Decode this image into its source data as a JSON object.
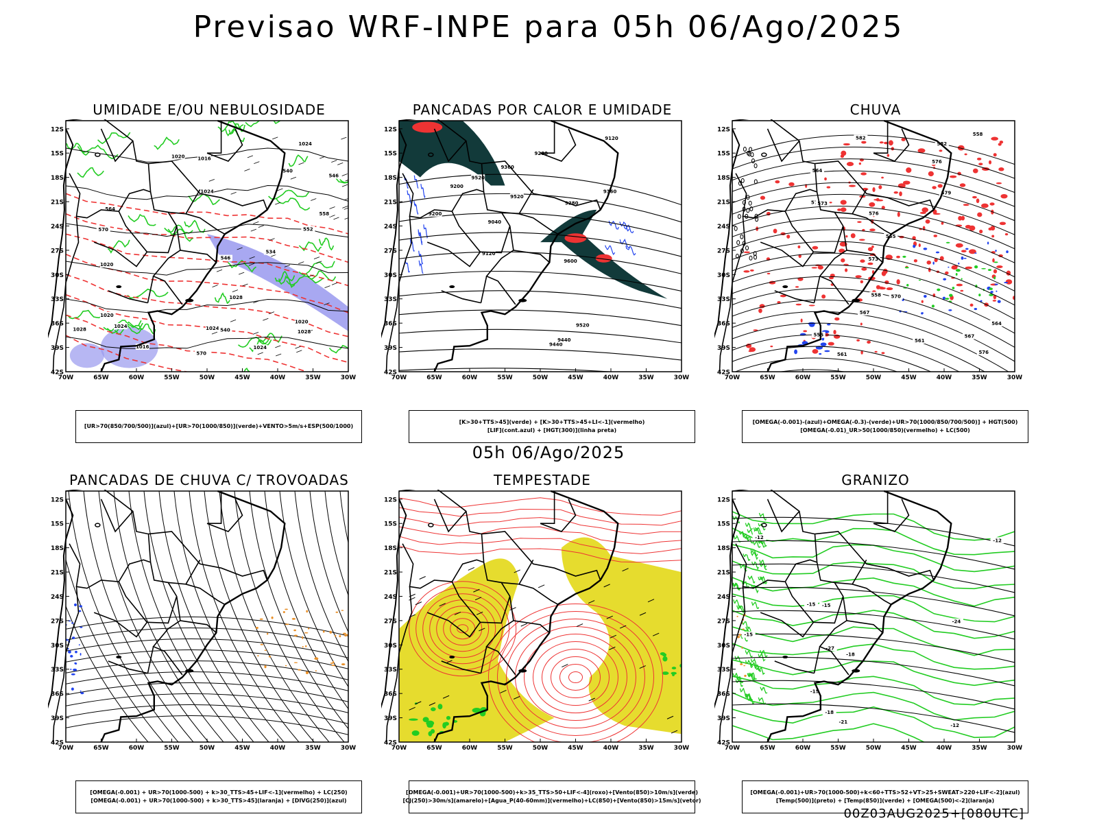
{
  "header": {
    "title": "Previsao WRF-INPE  para 05h 06/Ago/2025"
  },
  "mid_title": "05h 06/Ago/2025",
  "footer": "00Z03AUG2025+[080UTC]",
  "axes": {
    "lat_labels": [
      "12S",
      "15S",
      "18S",
      "21S",
      "24S",
      "27S",
      "30S",
      "33S",
      "36S",
      "39S",
      "42S"
    ],
    "lon_labels": [
      "70W",
      "65W",
      "60W",
      "55W",
      "50W",
      "45W",
      "40W",
      "35W",
      "30W"
    ]
  },
  "colors": {
    "green": "#22cc22",
    "red": "#ee3333",
    "blue": "#2244ee",
    "lavender": "#9999ee",
    "darkteal": "#123a3a",
    "yellow": "#e6dc2e",
    "orange": "#e8902a",
    "black": "#000000"
  },
  "panels": [
    {
      "title": "UMIDADE E/OU NEBULOSIDADE",
      "legend": [
        "[UR>70(850/700/500)](azul)+[UR>70(1000/850)](verde)+VENTO>5m/s+ESP(500/1000)"
      ],
      "contour_labels": [
        "1016",
        "1020",
        "1020",
        "1016",
        "1020",
        "1020",
        "1024",
        "1024",
        "1028",
        "1028",
        "1024",
        "1024",
        "1024",
        "1028",
        "570",
        "570",
        "564",
        "558",
        "552",
        "546",
        "540",
        "534",
        "540",
        "546"
      ]
    },
    {
      "title": "PANCADAS POR CALOR E UMIDADE",
      "legend": [
        "[K>30+TTS>45](verde) + [K>30+TTS>45+LI<-1](vermelho)",
        "[LIF](cont.azul) + [HGT(300)](linha preta)"
      ],
      "contour_labels": [
        "9600",
        "9520",
        "9520",
        "9520",
        "9440",
        "9440",
        "9360",
        "9360",
        "9280",
        "9280",
        "9200",
        "9200",
        "9120",
        "9120",
        "9040"
      ]
    },
    {
      "title": "CHUVA",
      "legend": [
        "[OMEGA(-0.001)-(azul)+OMEGA(-0.3)-(verde)+UR>70(1000/850/700/500)] + HGT(500)",
        "[OMEGA(-0.01)_UR>50(1000/850)(vermelho) + LC(500)"
      ],
      "contour_labels": [
        "582",
        "582",
        "579",
        "576",
        "576",
        "573",
        "570",
        "567",
        "564",
        "561",
        "558",
        "555",
        "573",
        "576",
        "570",
        "567",
        "564",
        "561",
        "558",
        "555"
      ]
    },
    {
      "title": "PANCADAS DE CHUVA C/ TROVOADAS",
      "legend": [
        "[OMEGA(-0.001) + UR>70(1000-500) + k>30_TTS>45+LIF<-1](vermelho) + LC(250)",
        "[OMEGA(-0.001) + UR>70(1000-500) + k>30_TTS>45](laranja) + [DIVG(250)](azul)"
      ],
      "contour_labels": []
    },
    {
      "title": "TEMPESTADE",
      "legend": [
        "[OMEGA(-0.001)+UR>70(1000-500)+k>35_TTS>50+LIF<-4](roxo)+[Vento(850)>10m/s](verde)",
        "[CJ(250)>30m/s](amarelo)+[Agua_P(40-60mm)](vermelho)+LC(850)+[Vento(850)>15m/s](vetor)"
      ],
      "contour_labels": []
    },
    {
      "title": "GRANIZO",
      "legend": [
        "[OMEGA(-0.001)+UR>70(1000-500)+k<60+TTS>52+VT>25+SWEAT>220+LIF<-2](azul)",
        "[Temp(500)](preto) + [Temp(850)](verde) + [OMEGA(500)<-2](laranja)"
      ],
      "contour_labels": [
        "-15",
        "-12",
        "-15",
        "-18",
        "-18",
        "-15",
        "-12",
        "-21",
        "-24",
        "-27",
        "-15",
        "-12"
      ]
    }
  ]
}
